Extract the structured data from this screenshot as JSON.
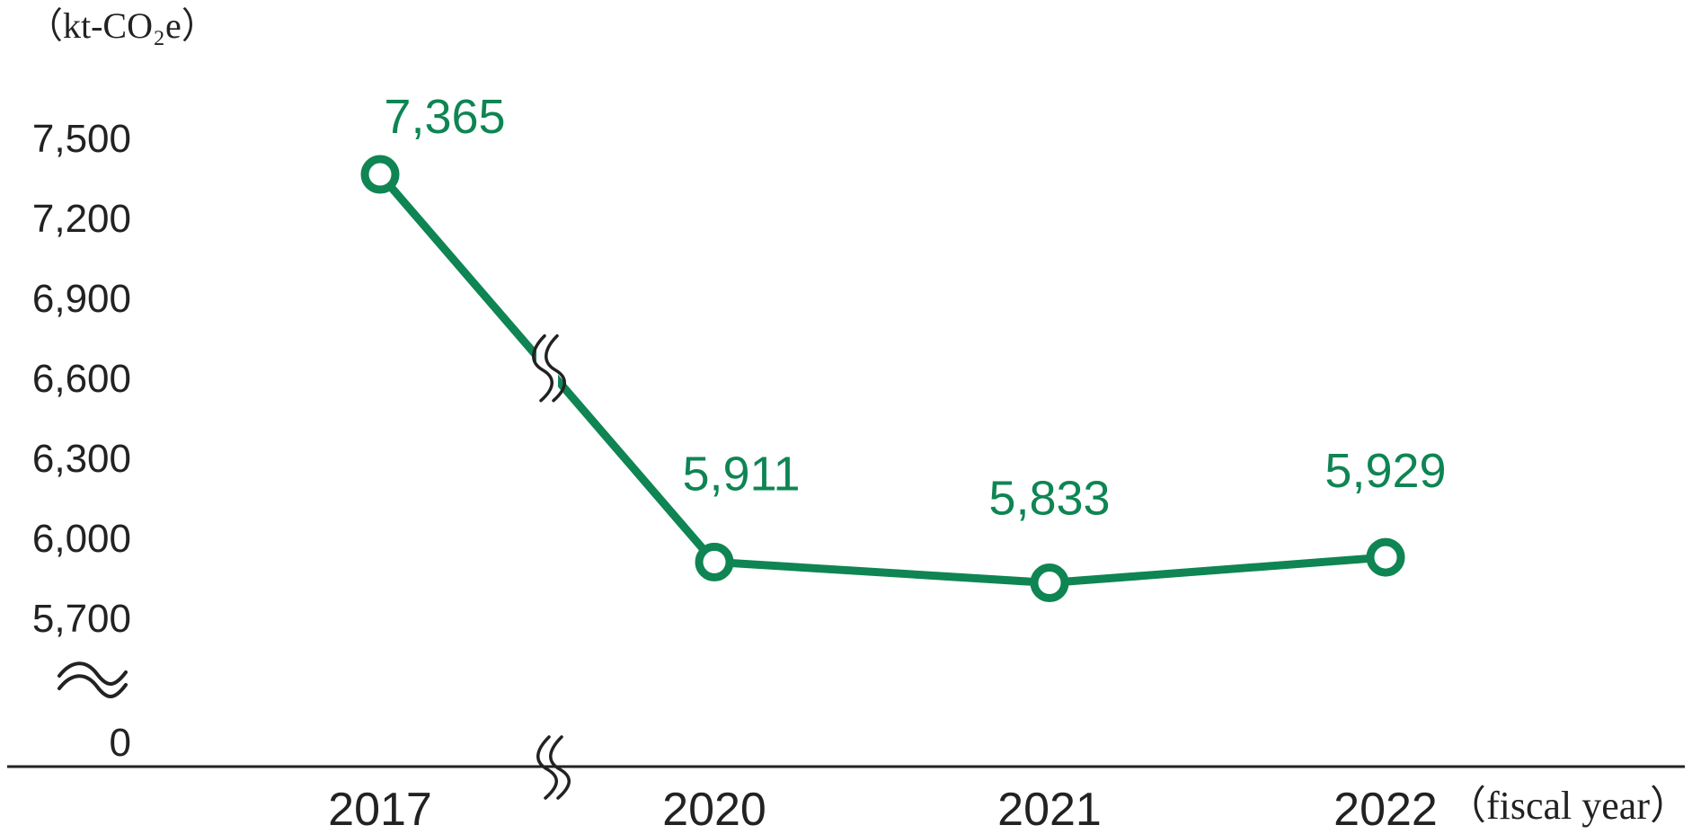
{
  "chart_data": {
    "type": "line",
    "title": "",
    "ylabel": "（kt-CO₂e）",
    "xlabel": "（fiscal year）",
    "categories": [
      "2017",
      "2020",
      "2021",
      "2022"
    ],
    "series": [
      {
        "values": [
          7365,
          5911,
          5833,
          5929
        ],
        "data_labels": [
          "7,365",
          "5,911",
          "5,833",
          "5,929"
        ]
      }
    ],
    "yticks": [
      0,
      5700,
      6000,
      6300,
      6600,
      6900,
      7200,
      7500
    ],
    "ytick_labels": [
      "0",
      "5,700",
      "6,000",
      "6,300",
      "6,600",
      "6,900",
      "7,200",
      "7,500"
    ],
    "ylim": [
      5700,
      7500
    ],
    "y_axis_break": true,
    "x_axis_break": "between 2017 and 2020",
    "grid": false,
    "legend": "none",
    "colors": {
      "series": "#0e8553",
      "marker_fill": "#ffffff",
      "axis": "#222222",
      "text": "#222222"
    }
  }
}
